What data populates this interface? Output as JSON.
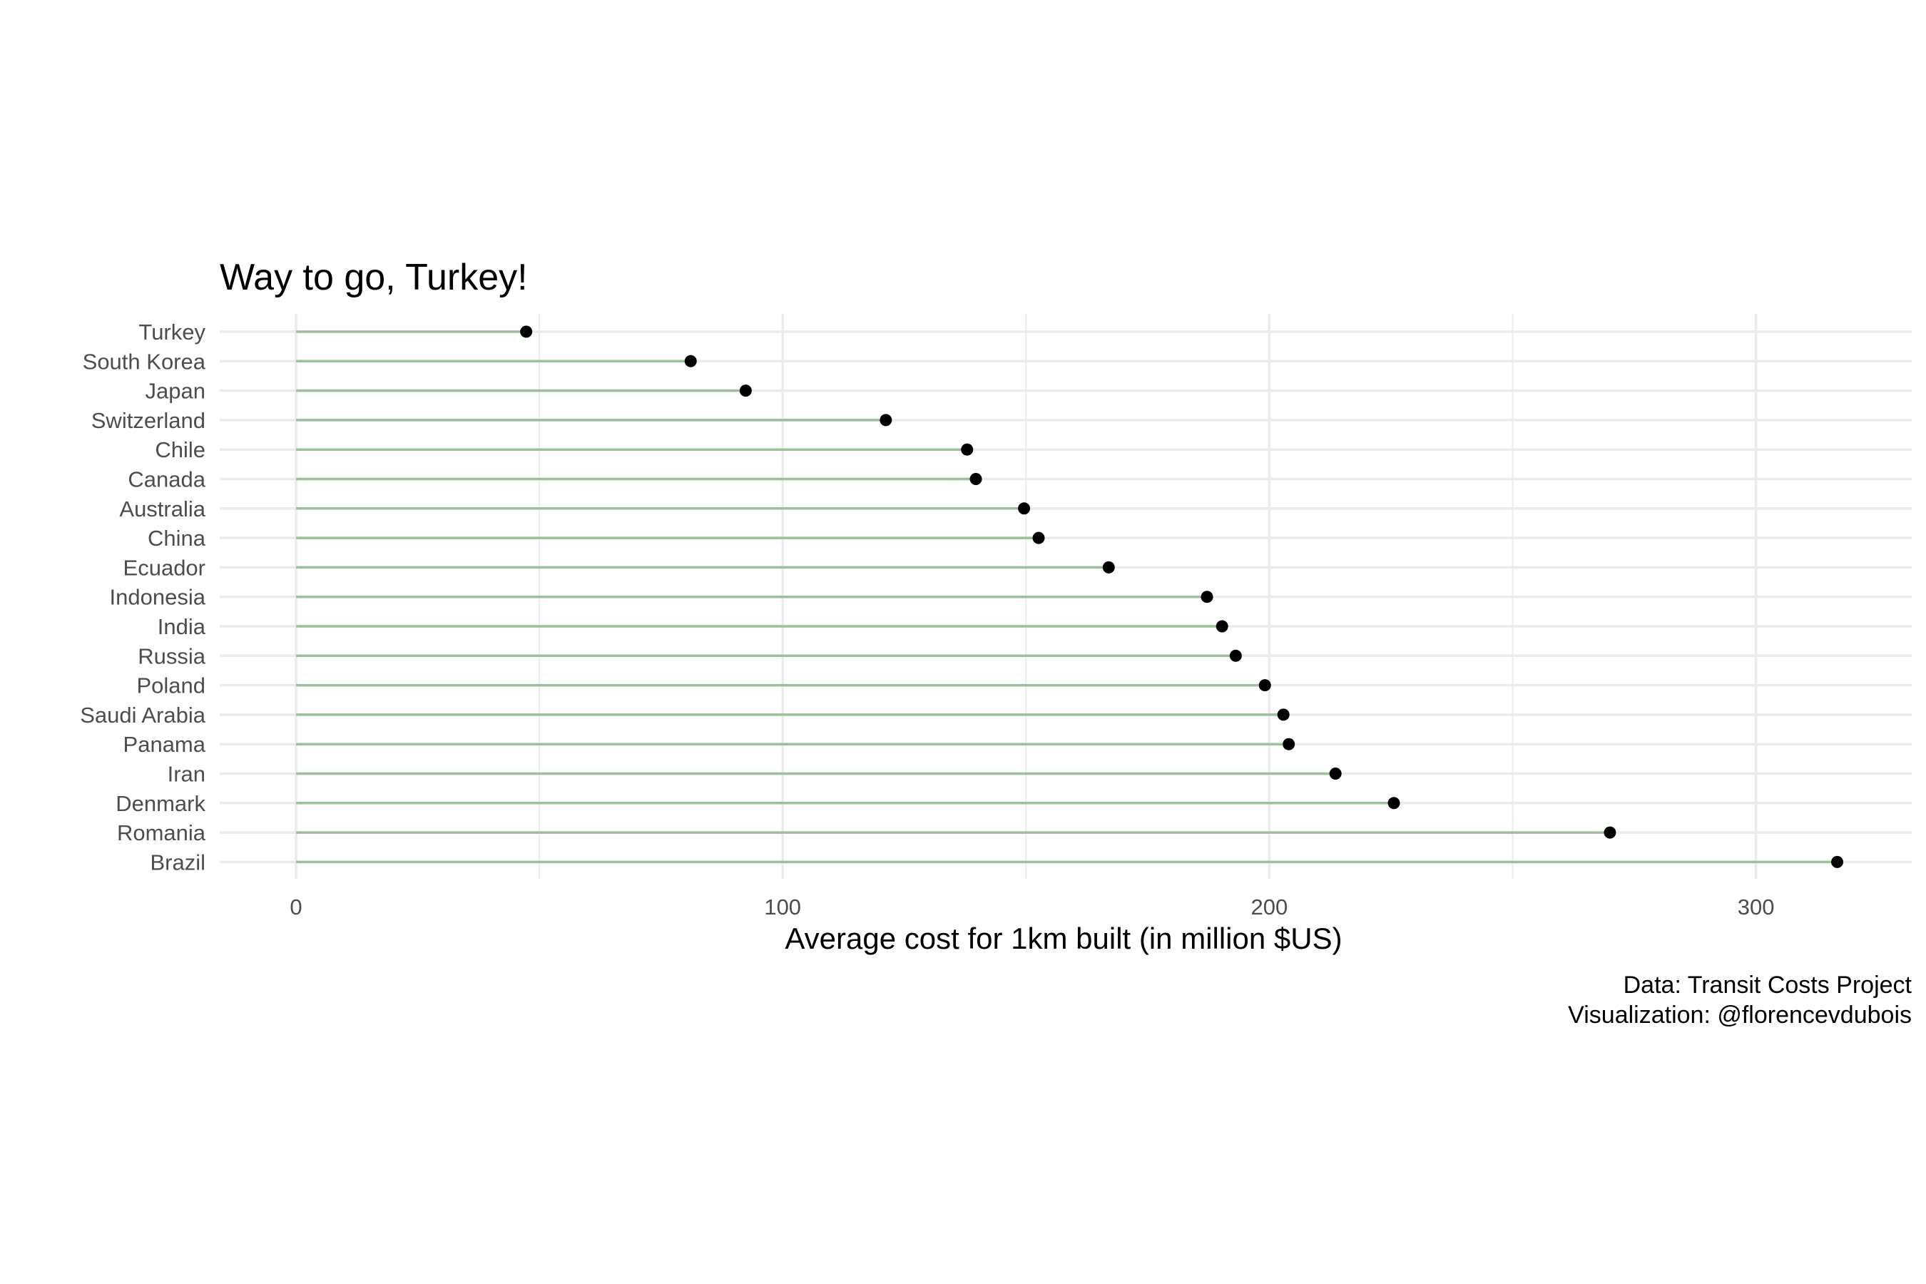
{
  "chart_data": {
    "type": "lollipop",
    "title": "Way to go, Turkey!",
    "xlabel": "Average cost for 1km built (in million $US)",
    "ylabel": "",
    "xlim": [
      -16,
      332
    ],
    "x_ticks": [
      0,
      100,
      200,
      300
    ],
    "x_minor_ticks": [
      50,
      150,
      250
    ],
    "grid": true,
    "caption": [
      "Data: Transit Costs Project",
      "Visualization: @florencevdubois"
    ],
    "colors": {
      "stem": "#9dbf9a",
      "point": "#000000",
      "grid": "#ebebeb"
    },
    "categories": [
      "Turkey",
      "South Korea",
      "Japan",
      "Switzerland",
      "Chile",
      "Canada",
      "Australia",
      "China",
      "Ecuador",
      "Indonesia",
      "India",
      "Russia",
      "Poland",
      "Saudi Arabia",
      "Panama",
      "Iran",
      "Denmark",
      "Romania",
      "Brazil"
    ],
    "values": [
      47.3,
      81.1,
      92.4,
      121.2,
      137.9,
      139.7,
      149.6,
      152.6,
      167.0,
      187.2,
      190.3,
      193.1,
      199.1,
      202.9,
      204.0,
      213.6,
      225.6,
      270.0,
      316.7
    ]
  }
}
